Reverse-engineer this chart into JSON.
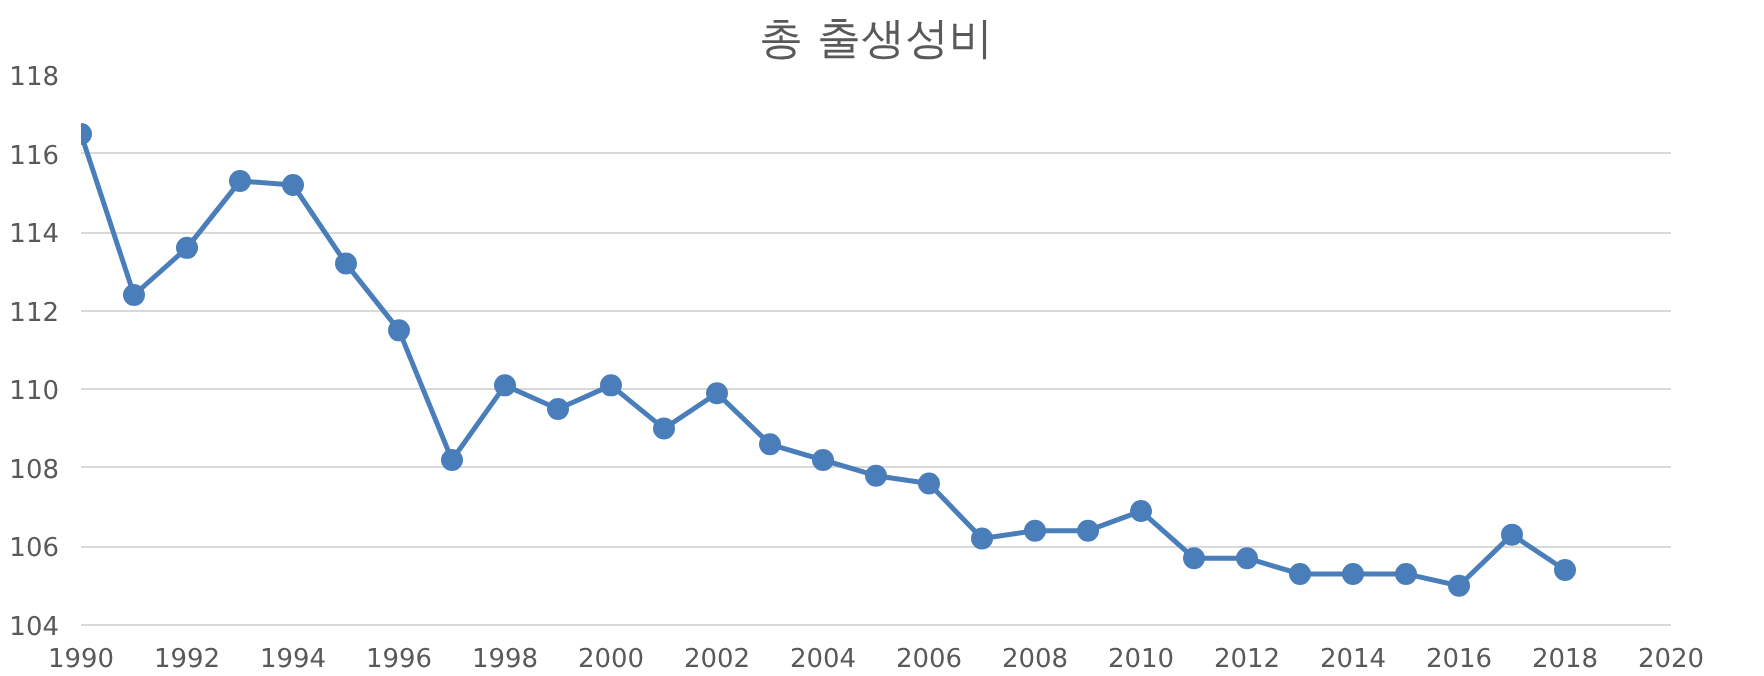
{
  "chart_data": {
    "type": "line",
    "title": "총 출생성비",
    "x": [
      1990,
      1991,
      1992,
      1993,
      1994,
      1995,
      1996,
      1997,
      1998,
      1999,
      2000,
      2001,
      2002,
      2003,
      2004,
      2005,
      2006,
      2007,
      2008,
      2009,
      2010,
      2011,
      2012,
      2013,
      2014,
      2015,
      2016,
      2017,
      2018
    ],
    "series": [
      {
        "color": "#4a7ebb",
        "values": [
          116.5,
          112.4,
          113.6,
          115.3,
          115.2,
          113.2,
          111.5,
          108.2,
          110.1,
          109.5,
          110.1,
          109.0,
          109.9,
          108.6,
          108.2,
          107.8,
          107.6,
          106.2,
          106.4,
          106.4,
          106.9,
          105.7,
          105.7,
          105.3,
          105.3,
          105.3,
          105.0,
          106.3,
          105.4
        ]
      }
    ],
    "xlim": [
      1990,
      2020
    ],
    "xticks": [
      1990,
      1992,
      1994,
      1996,
      1998,
      2000,
      2002,
      2004,
      2006,
      2008,
      2010,
      2012,
      2014,
      2016,
      2018,
      2020
    ],
    "ylim": [
      104,
      118
    ],
    "yticks": [
      104,
      106,
      108,
      110,
      112,
      114,
      116,
      118
    ],
    "grid": "y",
    "marker": "circle",
    "line_style": "solid"
  }
}
